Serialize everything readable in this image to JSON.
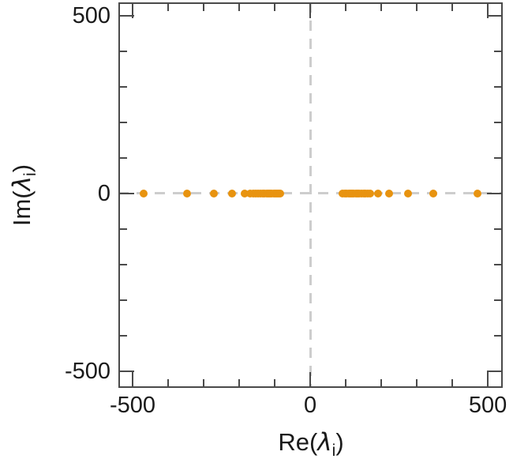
{
  "labels": {
    "x": {
      "func": "Re(",
      "symbol": "λ",
      "sub": "i",
      "close": ")"
    },
    "y": {
      "func": "Im(",
      "symbol": "λ",
      "sub": "i",
      "close": ")"
    }
  },
  "chart_data": {
    "type": "scatter",
    "title": "",
    "xlabel": "Re(λ_i)",
    "ylabel": "Im(λ_i)",
    "xlim": [
      -540,
      542
    ],
    "ylim": [
      -547,
      538
    ],
    "grid": false,
    "marker_color": "#e8930f",
    "frame_color": "#4a4a4a",
    "reference_line_color": "#cdcdcd",
    "reference_lines": [
      {
        "axis": "vertical",
        "value": 0,
        "style": "dashed"
      },
      {
        "axis": "horizontal",
        "value": 0,
        "style": "dashed"
      }
    ],
    "x_ticks": [
      {
        "v": -500,
        "label": "-500"
      },
      {
        "v": 0,
        "label": "0"
      },
      {
        "v": 500,
        "label": "500"
      }
    ],
    "y_ticks": [
      {
        "v": -500,
        "label": "-500"
      },
      {
        "v": 0,
        "label": "0"
      },
      {
        "v": 500,
        "label": "500"
      }
    ],
    "minor_tick_step": 100,
    "series": [
      {
        "name": "eigenvalues",
        "points": [
          [
            -470,
            0
          ],
          [
            -347,
            0
          ],
          [
            -271,
            0
          ],
          [
            -220,
            0
          ],
          [
            -184,
            0
          ],
          [
            -169,
            0
          ],
          [
            -161,
            0
          ],
          [
            -153,
            0
          ],
          [
            -146,
            0
          ],
          [
            -140,
            0
          ],
          [
            -134,
            0
          ],
          [
            -128,
            0
          ],
          [
            -123,
            0
          ],
          [
            -118,
            0
          ],
          [
            -113,
            0
          ],
          [
            -108,
            0
          ],
          [
            -103,
            0
          ],
          [
            -98,
            0
          ],
          [
            -93,
            0
          ],
          [
            -88,
            0
          ],
          [
            -84,
            0
          ],
          [
            91,
            0
          ],
          [
            97,
            0
          ],
          [
            103,
            0
          ],
          [
            108,
            0
          ],
          [
            113,
            0
          ],
          [
            118,
            0
          ],
          [
            123,
            0
          ],
          [
            128,
            0
          ],
          [
            133,
            0
          ],
          [
            138,
            0
          ],
          [
            144,
            0
          ],
          [
            150,
            0
          ],
          [
            156,
            0
          ],
          [
            162,
            0
          ],
          [
            168,
            0
          ],
          [
            191,
            0
          ],
          [
            223,
            0
          ],
          [
            275,
            0
          ],
          [
            347,
            0
          ],
          [
            471,
            0
          ]
        ]
      }
    ]
  }
}
